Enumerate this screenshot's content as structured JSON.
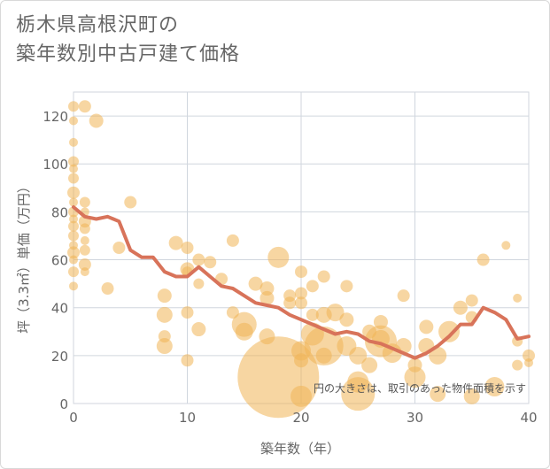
{
  "chart_data": {
    "type": "scatter",
    "title": "栃木県高根沢町の\n築年数別中古戸建て価格",
    "xlabel": "築年数（年）",
    "ylabel": "坪（3.3㎡）単価（万円）",
    "xlim": [
      0,
      40
    ],
    "ylim": [
      0,
      130
    ],
    "xticks": [
      0,
      10,
      20,
      30,
      40
    ],
    "yticks": [
      0,
      20,
      40,
      60,
      80,
      100,
      120
    ],
    "grid": true,
    "annotation": "円の大きさは、取引のあった物件面積を示す",
    "colors": {
      "bubble": "#f0b456",
      "line": "#d8735a",
      "grid": "#d0d6de",
      "text": "#666666"
    },
    "line_series": {
      "x": [
        0,
        1,
        2,
        3,
        4,
        5,
        6,
        7,
        8,
        9,
        10,
        11,
        12,
        13,
        14,
        15,
        16,
        17,
        18,
        19,
        20,
        21,
        22,
        23,
        24,
        25,
        26,
        27,
        28,
        29,
        30,
        31,
        32,
        33,
        34,
        35,
        36,
        37,
        38,
        39,
        40
      ],
      "y": [
        82,
        78,
        77,
        78,
        76,
        64,
        61,
        61,
        55,
        53,
        53,
        57,
        53,
        49,
        48,
        45,
        42,
        41,
        40,
        37,
        35,
        33,
        31,
        29,
        30,
        29,
        26,
        25,
        23,
        21,
        19,
        21,
        24,
        28,
        33,
        33,
        40,
        38,
        35,
        27,
        28
      ]
    },
    "bubbles": [
      {
        "x": 0,
        "y": 124,
        "s": 6
      },
      {
        "x": 0,
        "y": 118,
        "s": 5
      },
      {
        "x": 0,
        "y": 109,
        "s": 5
      },
      {
        "x": 0,
        "y": 101,
        "s": 6
      },
      {
        "x": 0,
        "y": 98,
        "s": 5
      },
      {
        "x": 0,
        "y": 94,
        "s": 6
      },
      {
        "x": 0,
        "y": 88,
        "s": 7
      },
      {
        "x": 0,
        "y": 84,
        "s": 5
      },
      {
        "x": 0,
        "y": 80,
        "s": 6
      },
      {
        "x": 0,
        "y": 77,
        "s": 5
      },
      {
        "x": 0,
        "y": 74,
        "s": 6
      },
      {
        "x": 0,
        "y": 70,
        "s": 6
      },
      {
        "x": 0,
        "y": 66,
        "s": 5
      },
      {
        "x": 0,
        "y": 63,
        "s": 7
      },
      {
        "x": 0,
        "y": 60,
        "s": 5
      },
      {
        "x": 0,
        "y": 55,
        "s": 6
      },
      {
        "x": 0,
        "y": 49,
        "s": 5
      },
      {
        "x": 1,
        "y": 124,
        "s": 7
      },
      {
        "x": 1,
        "y": 84,
        "s": 6
      },
      {
        "x": 1,
        "y": 80,
        "s": 5
      },
      {
        "x": 1,
        "y": 76,
        "s": 7
      },
      {
        "x": 1,
        "y": 73,
        "s": 6
      },
      {
        "x": 1,
        "y": 68,
        "s": 5
      },
      {
        "x": 1,
        "y": 64,
        "s": 6
      },
      {
        "x": 1,
        "y": 58,
        "s": 7
      },
      {
        "x": 1,
        "y": 55,
        "s": 5
      },
      {
        "x": 2,
        "y": 118,
        "s": 8
      },
      {
        "x": 3,
        "y": 48,
        "s": 7
      },
      {
        "x": 4,
        "y": 65,
        "s": 7
      },
      {
        "x": 5,
        "y": 84,
        "s": 7
      },
      {
        "x": 8,
        "y": 45,
        "s": 8
      },
      {
        "x": 8,
        "y": 37,
        "s": 9
      },
      {
        "x": 8,
        "y": 28,
        "s": 7
      },
      {
        "x": 8,
        "y": 24,
        "s": 9
      },
      {
        "x": 9,
        "y": 67,
        "s": 8
      },
      {
        "x": 10,
        "y": 65,
        "s": 7
      },
      {
        "x": 10,
        "y": 56,
        "s": 8
      },
      {
        "x": 10,
        "y": 55,
        "s": 6
      },
      {
        "x": 10,
        "y": 38,
        "s": 7
      },
      {
        "x": 10,
        "y": 18,
        "s": 7
      },
      {
        "x": 11,
        "y": 60,
        "s": 7
      },
      {
        "x": 11,
        "y": 50,
        "s": 6
      },
      {
        "x": 11,
        "y": 31,
        "s": 8
      },
      {
        "x": 12,
        "y": 59,
        "s": 7
      },
      {
        "x": 13,
        "y": 52,
        "s": 7
      },
      {
        "x": 14,
        "y": 68,
        "s": 7
      },
      {
        "x": 14,
        "y": 38,
        "s": 7
      },
      {
        "x": 15,
        "y": 33,
        "s": 14
      },
      {
        "x": 15,
        "y": 30,
        "s": 10
      },
      {
        "x": 16,
        "y": 50,
        "s": 8
      },
      {
        "x": 17,
        "y": 48,
        "s": 8
      },
      {
        "x": 17,
        "y": 44,
        "s": 8
      },
      {
        "x": 17,
        "y": 28,
        "s": 9
      },
      {
        "x": 18,
        "y": 11,
        "s": 46
      },
      {
        "x": 18,
        "y": 61,
        "s": 12
      },
      {
        "x": 19,
        "y": 45,
        "s": 7
      },
      {
        "x": 19,
        "y": 42,
        "s": 7
      },
      {
        "x": 20,
        "y": 55,
        "s": 7
      },
      {
        "x": 20,
        "y": 46,
        "s": 7
      },
      {
        "x": 20,
        "y": 42,
        "s": 7
      },
      {
        "x": 20,
        "y": 22,
        "s": 11
      },
      {
        "x": 20,
        "y": 18,
        "s": 8
      },
      {
        "x": 20,
        "y": 3,
        "s": 12
      },
      {
        "x": 21,
        "y": 49,
        "s": 7
      },
      {
        "x": 21,
        "y": 37,
        "s": 7
      },
      {
        "x": 21,
        "y": 29,
        "s": 13
      },
      {
        "x": 22,
        "y": 37,
        "s": 9
      },
      {
        "x": 22,
        "y": 24,
        "s": 22
      },
      {
        "x": 22,
        "y": 20,
        "s": 9
      },
      {
        "x": 22,
        "y": 53,
        "s": 7
      },
      {
        "x": 23,
        "y": 38,
        "s": 10
      },
      {
        "x": 24,
        "y": 49,
        "s": 7
      },
      {
        "x": 24,
        "y": 35,
        "s": 8
      },
      {
        "x": 24,
        "y": 24,
        "s": 11
      },
      {
        "x": 25,
        "y": 20,
        "s": 10
      },
      {
        "x": 25,
        "y": 4,
        "s": 19
      },
      {
        "x": 25,
        "y": 9,
        "s": 12
      },
      {
        "x": 26,
        "y": 30,
        "s": 8
      },
      {
        "x": 26,
        "y": 16,
        "s": 9
      },
      {
        "x": 27,
        "y": 34,
        "s": 8
      },
      {
        "x": 27,
        "y": 27,
        "s": 10
      },
      {
        "x": 27,
        "y": 26,
        "s": 18
      },
      {
        "x": 28,
        "y": 21,
        "s": 11
      },
      {
        "x": 29,
        "y": 45,
        "s": 7
      },
      {
        "x": 29,
        "y": 24,
        "s": 9
      },
      {
        "x": 30,
        "y": 11,
        "s": 12
      },
      {
        "x": 30,
        "y": 16,
        "s": 8
      },
      {
        "x": 31,
        "y": 32,
        "s": 8
      },
      {
        "x": 31,
        "y": 24,
        "s": 9
      },
      {
        "x": 32,
        "y": 20,
        "s": 10
      },
      {
        "x": 32,
        "y": 4,
        "s": 9
      },
      {
        "x": 33,
        "y": 30,
        "s": 12
      },
      {
        "x": 34,
        "y": 40,
        "s": 8
      },
      {
        "x": 35,
        "y": 43,
        "s": 7
      },
      {
        "x": 35,
        "y": 36,
        "s": 7
      },
      {
        "x": 35,
        "y": 3,
        "s": 9
      },
      {
        "x": 36,
        "y": 60,
        "s": 7
      },
      {
        "x": 37,
        "y": 7,
        "s": 11
      },
      {
        "x": 38,
        "y": 66,
        "s": 5
      },
      {
        "x": 39,
        "y": 44,
        "s": 5
      },
      {
        "x": 39,
        "y": 26,
        "s": 6
      },
      {
        "x": 39,
        "y": 16,
        "s": 6
      },
      {
        "x": 40,
        "y": 20,
        "s": 7
      },
      {
        "x": 40,
        "y": 17,
        "s": 5
      }
    ]
  }
}
